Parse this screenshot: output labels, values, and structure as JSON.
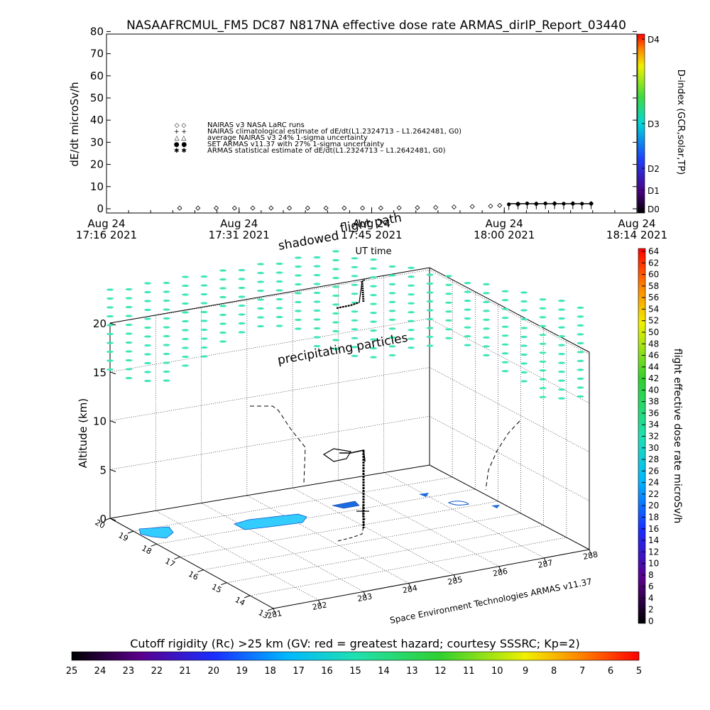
{
  "title": "NASAAFRCMUL_FM5 DC87 N817NA effective dose rate ARMAS_dirIP_Report_03440",
  "top_panel": {
    "ylabel": "dE/dt microSv/h",
    "xlabel": "UT time",
    "y_ticks": [
      "0",
      "10",
      "20",
      "30",
      "40",
      "50",
      "60",
      "70",
      "80"
    ],
    "x_ticks": [
      {
        "line1": "Aug 24",
        "line2": "17:16 2021"
      },
      {
        "line1": "Aug 24",
        "line2": "17:31 2021"
      },
      {
        "line1": "Aug 24",
        "line2": "17:45 2021"
      },
      {
        "line1": "Aug 24",
        "line2": "18:00 2021"
      },
      {
        "line1": "Aug 24",
        "line2": "18:14 2021"
      }
    ],
    "legend": [
      {
        "symbol": "◇ ◇",
        "text": "NAIRAS v3 NASA LaRC runs"
      },
      {
        "symbol": "+ +",
        "text": "NAIRAS climatological estimate of dE/dt(L1.2324713 – L1.2642481, G0)"
      },
      {
        "symbol": "△ △",
        "text": "average NAIRAS v3 24% 1-sigma uncertainty"
      },
      {
        "symbol": "● ●",
        "text": "SET ARMAS v11.37 with 27% 1-sigma uncertainty"
      },
      {
        "symbol": "✱ ✱",
        "text": "ARMAS statistical estimate of dE/dt(L1.2324713 – L1.2642481, G0)"
      }
    ],
    "dindex": {
      "label": "D-index (GCR,solar,TP)",
      "ticks": [
        "D0",
        "D1",
        "D2",
        "D3",
        "D4"
      ]
    }
  },
  "chart_data": [
    {
      "type": "scatter",
      "title": "NASAAFRCMUL_FM5 DC87 N817NA effective dose rate ARMAS_dirIP_Report_03440",
      "xlabel": "UT time",
      "ylabel": "dE/dt microSv/h",
      "ylim": [
        0,
        80
      ],
      "xlim": [
        "17:16",
        "18:14"
      ],
      "grid": false,
      "legend_position": "upper-left",
      "series": [
        {
          "name": "NAIRAS v3 NASA LaRC runs",
          "x": [
            "17:24",
            "17:26",
            "17:28",
            "17:30",
            "17:32",
            "17:34",
            "17:36",
            "17:38",
            "17:40",
            "17:42",
            "17:44",
            "17:46",
            "17:48",
            "17:50",
            "17:52",
            "17:54",
            "17:56",
            "17:58",
            "17:59",
            "18:01",
            "18:03",
            "18:05",
            "18:07",
            "18:09"
          ],
          "values": [
            0.3,
            0.3,
            0.3,
            0.3,
            0.3,
            0.3,
            0.3,
            0.3,
            0.3,
            0.3,
            0.3,
            0.3,
            0.4,
            0.5,
            0.6,
            0.8,
            1.0,
            1.2,
            1.5,
            2.0,
            2.2,
            2.3,
            2.3,
            2.3
          ]
        },
        {
          "name": "SET ARMAS v11.37 with 27% 1-sigma uncertainty",
          "x": [
            "18:00",
            "18:01",
            "18:02",
            "18:03",
            "18:04",
            "18:05",
            "18:06",
            "18:07",
            "18:08",
            "18:09"
          ],
          "values": [
            2.0,
            2.3,
            2.4,
            2.3,
            2.4,
            2.4,
            2.3,
            2.4,
            2.3,
            2.4
          ]
        }
      ]
    },
    {
      "type": "scatter",
      "ylabel": "Altitude (km)",
      "z_ticks": [
        "0",
        "5",
        "10",
        "15",
        "20"
      ],
      "latitude_ticks": [
        "20",
        "19",
        "18",
        "17",
        "16",
        "15",
        "14",
        "13"
      ],
      "longitude_ticks": [
        "281",
        "282",
        "283",
        "284",
        "285",
        "286",
        "287",
        "288"
      ],
      "annotations": [
        "flight path",
        "shadowed",
        "precipitating particles"
      ],
      "credit": "Space Environment Technologies ARMAS v11.37",
      "dose_colorbar": {
        "label": "flight effective dose rate microSv/h",
        "ticks": [
          "0",
          "2",
          "4",
          "6",
          "8",
          "10",
          "12",
          "14",
          "16",
          "18",
          "20",
          "22",
          "24",
          "26",
          "28",
          "30",
          "32",
          "34",
          "36",
          "38",
          "40",
          "42",
          "44",
          "46",
          "48",
          "50",
          "52",
          "54",
          "56",
          "58",
          "60",
          "62",
          "64"
        ]
      },
      "cutoff_colorbar": {
        "label": "Cutoff rigidity (Rc) >25 km (GV: red = greatest hazard; courtesy SSSRC; Kp=2)",
        "ticks": [
          "25",
          "24",
          "23",
          "22",
          "21",
          "20",
          "19",
          "18",
          "17",
          "16",
          "15",
          "14",
          "13",
          "12",
          "11",
          "10",
          "9",
          "8",
          "7",
          "6",
          "5"
        ]
      }
    }
  ],
  "colors": {
    "precipitating": "#3ee6b8",
    "contour_fill": "#33ccff",
    "contour_dark": "#0b55cc",
    "flight_marker": "#000000"
  }
}
